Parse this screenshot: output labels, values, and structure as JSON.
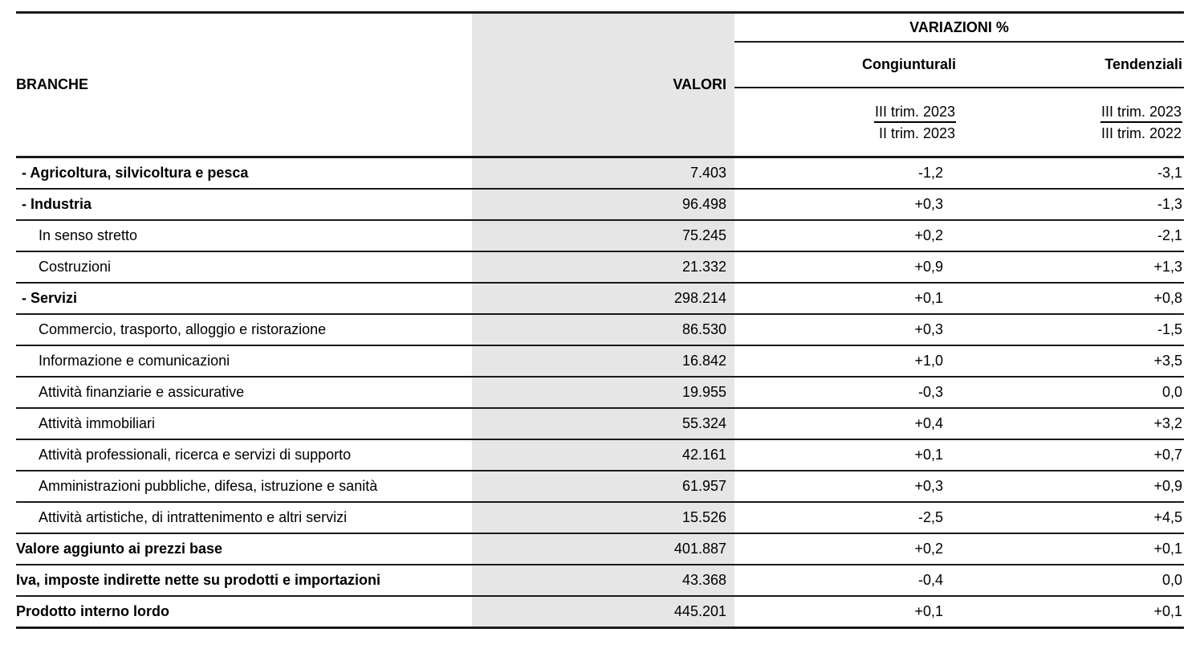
{
  "table": {
    "header": {
      "branche": "BRANCHE",
      "valori": "VALORI",
      "variazioni_title": "VARIAZIONI %",
      "congiunturali": {
        "label": "Congiunturali",
        "numerator": "III trim. 2023",
        "denominator": "II trim. 2023"
      },
      "tendenziali": {
        "label": "Tendenziali",
        "numerator": "III trim. 2023",
        "denominator": "III trim. 2022"
      }
    },
    "rows": [
      {
        "label": "- Agricoltura, silvicoltura e pesca",
        "style": "section",
        "valori": "7.403",
        "congiunturali": "-1,2",
        "tendenziali": "-3,1"
      },
      {
        "label": "- Industria",
        "style": "section",
        "valori": "96.498",
        "congiunturali": "+0,3",
        "tendenziali": "-1,3"
      },
      {
        "label": "In senso stretto",
        "style": "sub",
        "valori": "75.245",
        "congiunturali": "+0,2",
        "tendenziali": "-2,1"
      },
      {
        "label": "Costruzioni",
        "style": "sub",
        "valori": "21.332",
        "congiunturali": "+0,9",
        "tendenziali": "+1,3"
      },
      {
        "label": "- Servizi",
        "style": "section",
        "valori": "298.214",
        "congiunturali": "+0,1",
        "tendenziali": "+0,8"
      },
      {
        "label": "Commercio, trasporto, alloggio e ristorazione",
        "style": "sub",
        "valori": "86.530",
        "congiunturali": "+0,3",
        "tendenziali": "-1,5"
      },
      {
        "label": "Informazione e comunicazioni",
        "style": "sub",
        "valori": "16.842",
        "congiunturali": "+1,0",
        "tendenziali": "+3,5"
      },
      {
        "label": "Attività finanziarie e assicurative",
        "style": "sub",
        "valori": "19.955",
        "congiunturali": "-0,3",
        "tendenziali": "0,0"
      },
      {
        "label": "Attività immobiliari",
        "style": "sub",
        "valori": "55.324",
        "congiunturali": "+0,4",
        "tendenziali": "+3,2"
      },
      {
        "label": "Attività professionali, ricerca e servizi di supporto",
        "style": "sub",
        "valori": "42.161",
        "congiunturali": "+0,1",
        "tendenziali": "+0,7"
      },
      {
        "label": "Amministrazioni pubbliche, difesa, istruzione e sanità",
        "style": "sub",
        "valori": "61.957",
        "congiunturali": "+0,3",
        "tendenziali": "+0,9"
      },
      {
        "label": "Attività artistiche, di intrattenimento e altri servizi",
        "style": "sub",
        "valori": "15.526",
        "congiunturali": "-2,5",
        "tendenziali": "+4,5"
      },
      {
        "label": "Valore aggiunto ai prezzi base",
        "style": "total",
        "valori": "401.887",
        "congiunturali": "+0,2",
        "tendenziali": "+0,1"
      },
      {
        "label": "Iva, imposte indirette nette su prodotti e importazioni",
        "style": "total",
        "valori": "43.368",
        "congiunturali": "-0,4",
        "tendenziali": "0,0"
      },
      {
        "label": "Prodotto interno lordo",
        "style": "total",
        "valori": "445.201",
        "congiunturali": "+0,1",
        "tendenziali": "+0,1"
      }
    ],
    "colors": {
      "valori_band": "#e6e6e6",
      "rule": "#1a1a1a",
      "text": "#000000"
    }
  }
}
